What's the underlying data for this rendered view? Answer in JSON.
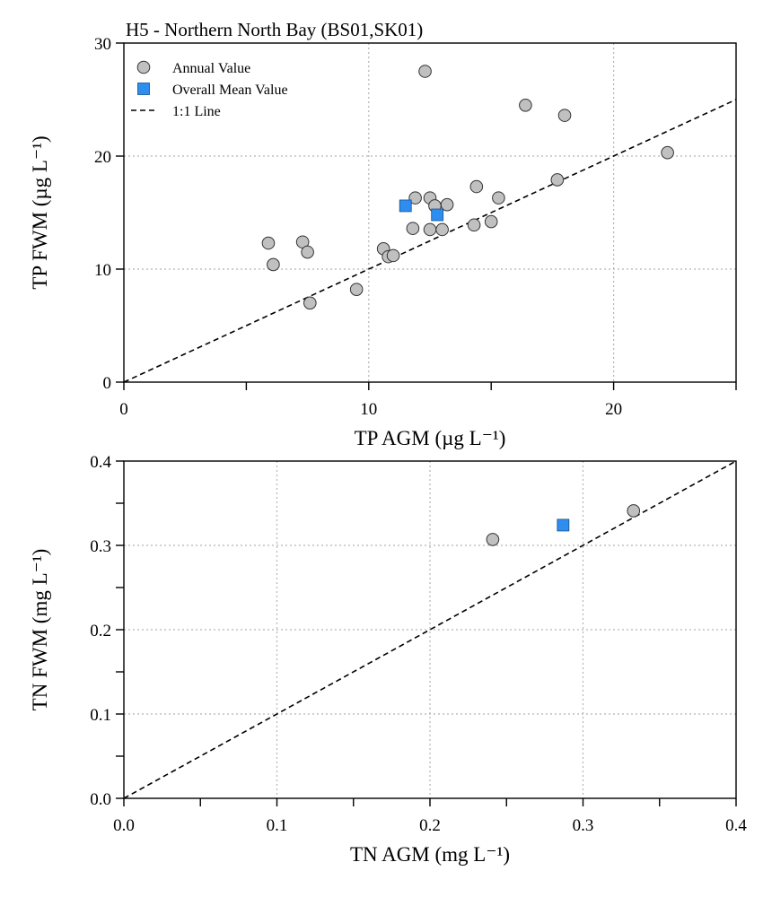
{
  "chart_data": [
    {
      "type": "scatter",
      "title": "H5 - Northern North Bay (BS01,SK01)",
      "xlabel": "TP AGM (µg L⁻¹)",
      "ylabel": "TP FWM (µg L⁻¹)",
      "xlim": [
        0,
        25
      ],
      "ylim": [
        0,
        30
      ],
      "xticks": [
        0,
        10,
        20
      ],
      "xticks_minor": [
        5,
        15,
        25
      ],
      "yticks": [
        0,
        10,
        20,
        30
      ],
      "grid": true,
      "legend": {
        "position": "top-left",
        "items": [
          "Annual Value",
          "Overall Mean Value",
          "1:1 Line"
        ]
      },
      "series": [
        {
          "name": "Annual Value",
          "marker": "circle",
          "color": "#c0c0c0",
          "points": [
            [
              5.9,
              12.3
            ],
            [
              6.1,
              10.4
            ],
            [
              7.3,
              12.4
            ],
            [
              7.5,
              11.5
            ],
            [
              7.6,
              7.0
            ],
            [
              9.5,
              8.2
            ],
            [
              10.6,
              11.8
            ],
            [
              10.8,
              11.1
            ],
            [
              11.0,
              11.2
            ],
            [
              11.9,
              16.3
            ],
            [
              11.8,
              13.6
            ],
            [
              12.3,
              27.5
            ],
            [
              12.5,
              16.3
            ],
            [
              12.7,
              15.6
            ],
            [
              12.5,
              13.5
            ],
            [
              13.0,
              13.5
            ],
            [
              13.2,
              15.7
            ],
            [
              14.3,
              13.9
            ],
            [
              14.4,
              17.3
            ],
            [
              15.0,
              14.2
            ],
            [
              15.3,
              16.3
            ],
            [
              16.4,
              24.5
            ],
            [
              17.7,
              17.9
            ],
            [
              18.0,
              23.6
            ],
            [
              22.2,
              20.3
            ]
          ]
        },
        {
          "name": "Overall Mean Value",
          "marker": "square",
          "color": "#2e8ef0",
          "points": [
            [
              11.5,
              15.6
            ],
            [
              12.8,
              14.8
            ]
          ]
        },
        {
          "name": "1:1 Line",
          "style": "dashed",
          "color": "#000000",
          "points": [
            [
              0,
              0
            ],
            [
              25,
              25
            ]
          ]
        }
      ]
    },
    {
      "type": "scatter",
      "title": "",
      "xlabel": "TN AGM (mg L⁻¹)",
      "ylabel": "TN FWM (mg L⁻¹)",
      "xlim": [
        0,
        0.4
      ],
      "ylim": [
        0,
        0.4
      ],
      "xticks": [
        "0.0",
        "0.1",
        "0.2",
        "0.3",
        "0.4"
      ],
      "yticks": [
        "0.0",
        "0.1",
        "0.2",
        "0.3",
        "0.4"
      ],
      "grid": true,
      "series": [
        {
          "name": "Annual Value",
          "marker": "circle",
          "color": "#c0c0c0",
          "points": [
            [
              0.241,
              0.307
            ],
            [
              0.333,
              0.341
            ]
          ]
        },
        {
          "name": "Overall Mean Value",
          "marker": "square",
          "color": "#2e8ef0",
          "points": [
            [
              0.287,
              0.324
            ]
          ]
        },
        {
          "name": "1:1 Line",
          "style": "dashed",
          "color": "#000000",
          "points": [
            [
              0,
              0
            ],
            [
              0.4,
              0.4
            ]
          ]
        }
      ]
    }
  ]
}
